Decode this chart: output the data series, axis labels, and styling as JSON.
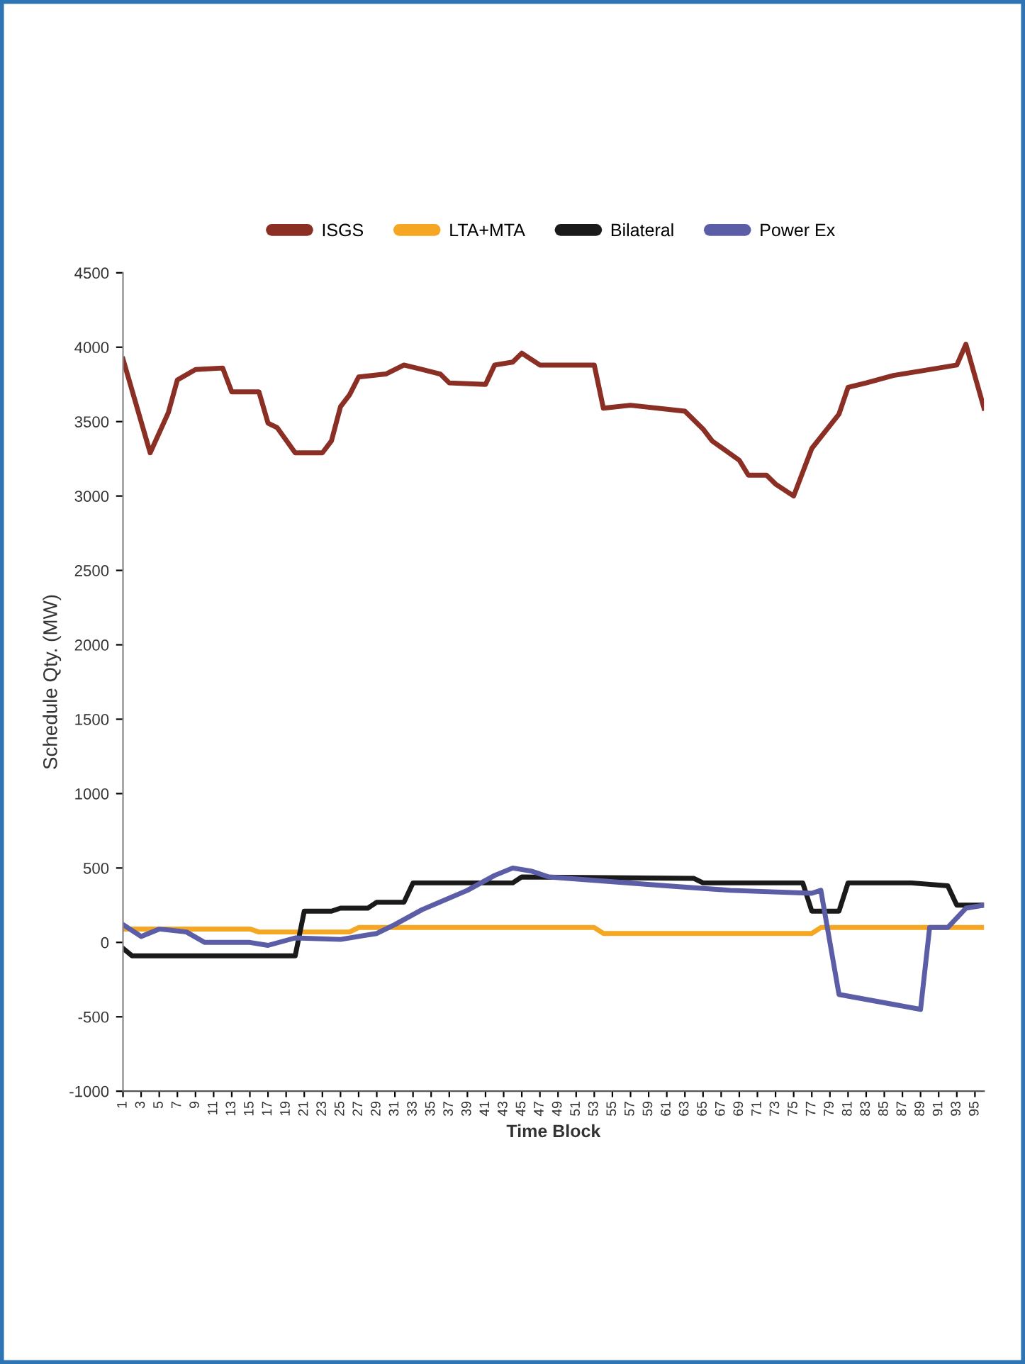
{
  "chart_data": {
    "type": "line",
    "xlabel": "Time Block",
    "ylabel": "Schedule Qty. (MW)",
    "xlim": [
      1,
      96
    ],
    "xticks": [
      1,
      3,
      5,
      7,
      9,
      11,
      13,
      15,
      17,
      19,
      21,
      23,
      25,
      27,
      29,
      31,
      33,
      35,
      37,
      39,
      41,
      43,
      45,
      47,
      49,
      51,
      53,
      55,
      57,
      59,
      61,
      63,
      65,
      67,
      69,
      71,
      73,
      75,
      77,
      79,
      81,
      83,
      85,
      87,
      89,
      91,
      93,
      95
    ],
    "ylim": [
      -1000,
      4500
    ],
    "yticks": [
      -1000,
      -500,
      0,
      500,
      1000,
      1500,
      2000,
      2500,
      3000,
      3500,
      4000,
      4500
    ],
    "grid": false,
    "legend": "top",
    "marker": "none",
    "line_style": "solid",
    "series": [
      {
        "name": "ISGS",
        "color": "#8b2e24",
        "x": [
          1,
          4,
          6,
          7,
          9,
          12,
          13,
          16,
          17,
          18,
          20,
          23,
          24,
          25,
          26,
          27,
          30,
          32,
          34,
          36,
          37,
          41,
          42,
          44,
          45,
          47,
          53,
          54,
          57,
          63,
          65,
          66,
          69,
          70,
          72,
          73,
          75,
          77,
          80,
          81,
          83,
          86,
          89,
          93,
          94,
          96
        ],
        "values": [
          3920,
          3290,
          3560,
          3780,
          3850,
          3860,
          3700,
          3700,
          3490,
          3460,
          3290,
          3290,
          3370,
          3600,
          3680,
          3800,
          3820,
          3880,
          3850,
          3820,
          3760,
          3750,
          3880,
          3900,
          3960,
          3880,
          3880,
          3590,
          3610,
          3570,
          3450,
          3370,
          3240,
          3140,
          3140,
          3080,
          3000,
          3320,
          3550,
          3730,
          3760,
          3810,
          3840,
          3880,
          4020,
          3590
        ]
      },
      {
        "name": "LTA+MTA",
        "color": "#f5a623",
        "x": [
          1,
          15,
          16,
          26,
          27,
          53,
          54,
          77,
          78,
          96
        ],
        "values": [
          90,
          90,
          70,
          70,
          100,
          100,
          60,
          60,
          100,
          100
        ]
      },
      {
        "name": "Bilateral",
        "color": "#1a1a1a",
        "x": [
          1,
          2,
          20,
          21,
          24,
          25,
          28,
          29,
          32,
          33,
          44,
          45,
          64,
          65,
          76,
          77,
          80,
          81,
          88,
          92,
          93,
          96
        ],
        "values": [
          -40,
          -90,
          -90,
          210,
          210,
          230,
          230,
          270,
          270,
          400,
          400,
          440,
          430,
          400,
          400,
          210,
          210,
          400,
          400,
          380,
          250,
          250
        ]
      },
      {
        "name": "Power Ex",
        "color": "#5b5ea6",
        "x": [
          1,
          3,
          5,
          8,
          10,
          15,
          17,
          20,
          25,
          29,
          31,
          34,
          39,
          42,
          44,
          46,
          48,
          61,
          68,
          77,
          78,
          80,
          89,
          90,
          92,
          94,
          96
        ],
        "values": [
          120,
          40,
          90,
          70,
          0,
          0,
          -20,
          30,
          20,
          60,
          120,
          220,
          350,
          450,
          500,
          480,
          440,
          380,
          350,
          330,
          350,
          -350,
          -450,
          100,
          100,
          230,
          250
        ]
      }
    ]
  }
}
